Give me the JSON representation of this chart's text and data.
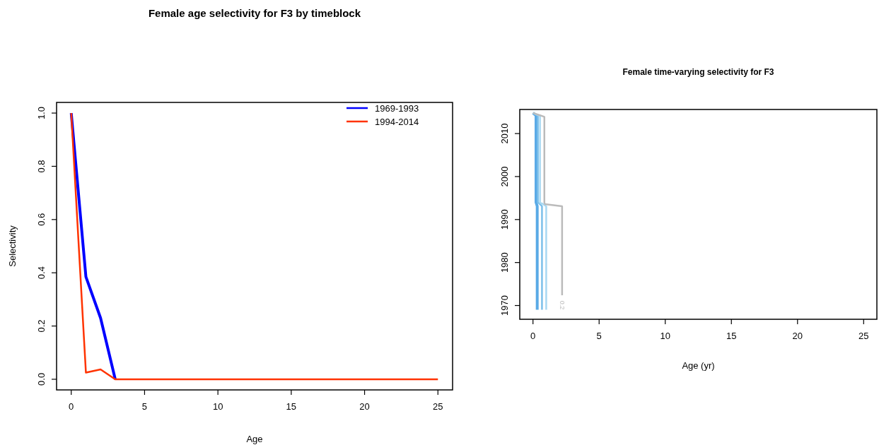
{
  "chart_data": [
    {
      "type": "line",
      "title": "Female age selectivity for F3 by timeblock",
      "xlabel": "Age",
      "ylabel": "Selectivity",
      "x": [
        0,
        1,
        2,
        3,
        4,
        5,
        6,
        7,
        8,
        9,
        10,
        11,
        12,
        13,
        14,
        15,
        16,
        17,
        18,
        19,
        20,
        21,
        22,
        23,
        24,
        25
      ],
      "series": [
        {
          "name": "1969-1993",
          "color": "#0000ff",
          "values": [
            1,
            0.385,
            0.23,
            0,
            null,
            null,
            null,
            null,
            null,
            null,
            null,
            null,
            null,
            null,
            null,
            null,
            null,
            null,
            null,
            null,
            null,
            null,
            null,
            null,
            null,
            null
          ]
        },
        {
          "name": "1994-2014",
          "color": "#ff3300",
          "values": [
            1,
            0.025,
            0.037,
            0,
            0,
            0,
            0,
            0,
            0,
            0,
            0,
            0,
            0,
            0,
            0,
            0,
            0,
            0,
            0,
            0,
            0,
            0,
            0,
            0,
            0,
            0
          ]
        }
      ],
      "xlim": [
        -1,
        26
      ],
      "xticks": [
        0,
        5,
        10,
        15,
        20,
        25
      ],
      "ylim": [
        -0.04,
        1.04
      ],
      "yticks": [
        {
          "value": 0,
          "label": "0.0"
        },
        0.2,
        0.4,
        0.6,
        0.8,
        {
          "value": 1,
          "label": "1.0"
        }
      ],
      "grid": false,
      "legend": "top right"
    },
    {
      "type": "line",
      "title": "Female time-varying selectivity for F3",
      "xlabel": "Age (yr)",
      "series": [
        {
          "color": "#5aaae6",
          "x": [
            0.32,
            0.32,
            0.23,
            0.23,
            0
          ],
          "values": [
            1969,
            1993.1,
            1994,
            2014.2,
            2014.8
          ]
        },
        {
          "color": "#7cc0ea",
          "x": [
            0.68,
            0.68,
            0.45,
            0.37,
            0.37,
            0
          ],
          "values": [
            1969,
            1993.1,
            1993.8,
            1994,
            2014.2,
            2014.8
          ]
        },
        {
          "color": "#a8d8f2",
          "x": [
            1.0,
            1.0,
            0.7,
            0.53,
            0.53,
            0
          ],
          "values": [
            1969,
            1993.1,
            1993.7,
            1993.9,
            2014.1,
            2014.8
          ]
        },
        {
          "color": "#bbbbbb",
          "x": [
            2.2,
            2.2,
            0.9,
            0.86,
            0.86,
            0
          ],
          "values": [
            1972.4,
            1993.1,
            1993.6,
            1993.9,
            2013.9,
            2014.8
          ]
        }
      ],
      "xlim": [
        -1,
        26
      ],
      "xticks": [
        0,
        5,
        10,
        15,
        20,
        25
      ],
      "ylim": [
        1966.8,
        2015.6
      ],
      "yticks": [
        1970,
        1980,
        1990,
        2000,
        2010
      ],
      "grid": false,
      "annotations": [
        "0.2"
      ]
    }
  ]
}
